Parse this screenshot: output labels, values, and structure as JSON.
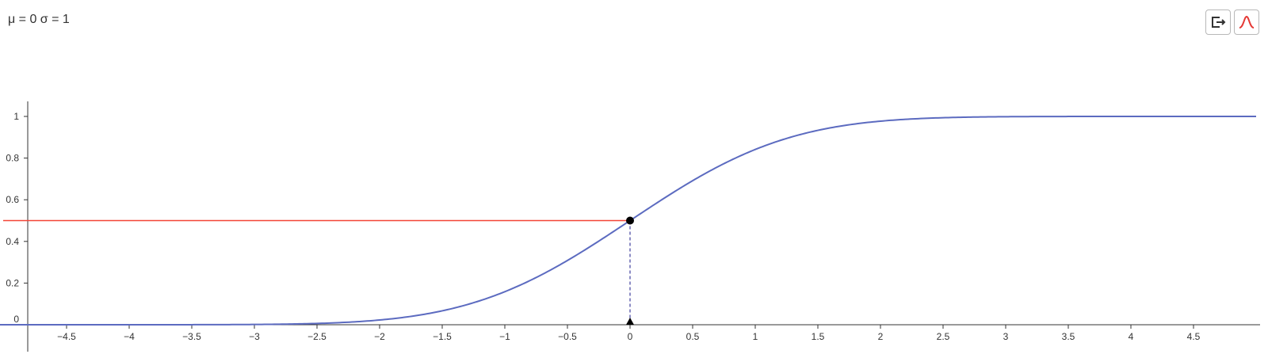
{
  "header": {
    "params_label": "μ = 0 σ = 1"
  },
  "toolbar": {
    "buttons": [
      {
        "name": "export-button",
        "icon": "export-icon"
      },
      {
        "name": "distribution-button",
        "icon": "bell-curve-icon",
        "color": "#e53935"
      }
    ]
  },
  "colors": {
    "curve": "#5c6bc0",
    "reference_line": "#f44336",
    "marker": "#000000",
    "dashed_line": "#3f3f9e",
    "axis": "#333333"
  },
  "chart_data": {
    "type": "line",
    "description": "normal CDF",
    "mu": 0,
    "sigma": 1,
    "xlim": [
      -5.2,
      5.0
    ],
    "ylim": [
      -0.12,
      1.07
    ],
    "x_ticks": [
      "−4.5",
      "−4",
      "−3.5",
      "−3",
      "−2.5",
      "−2",
      "−1.5",
      "−1",
      "−0.5",
      "0",
      "0.5",
      "1",
      "1.5",
      "2",
      "2.5",
      "3",
      "3.5",
      "4",
      "4.5"
    ],
    "x_tick_values": [
      -4.5,
      -4,
      -3.5,
      -3,
      -2.5,
      -2,
      -1.5,
      -1,
      -0.5,
      0,
      0.5,
      1,
      1.5,
      2,
      2.5,
      3,
      3.5,
      4,
      4.5
    ],
    "y_ticks": [
      "0",
      "0.2",
      "0.4",
      "0.6",
      "0.8",
      "1"
    ],
    "y_tick_values": [
      0,
      0.2,
      0.4,
      0.6,
      0.8,
      1
    ],
    "point": {
      "x": 0,
      "y": 0.5
    },
    "grid": false
  }
}
